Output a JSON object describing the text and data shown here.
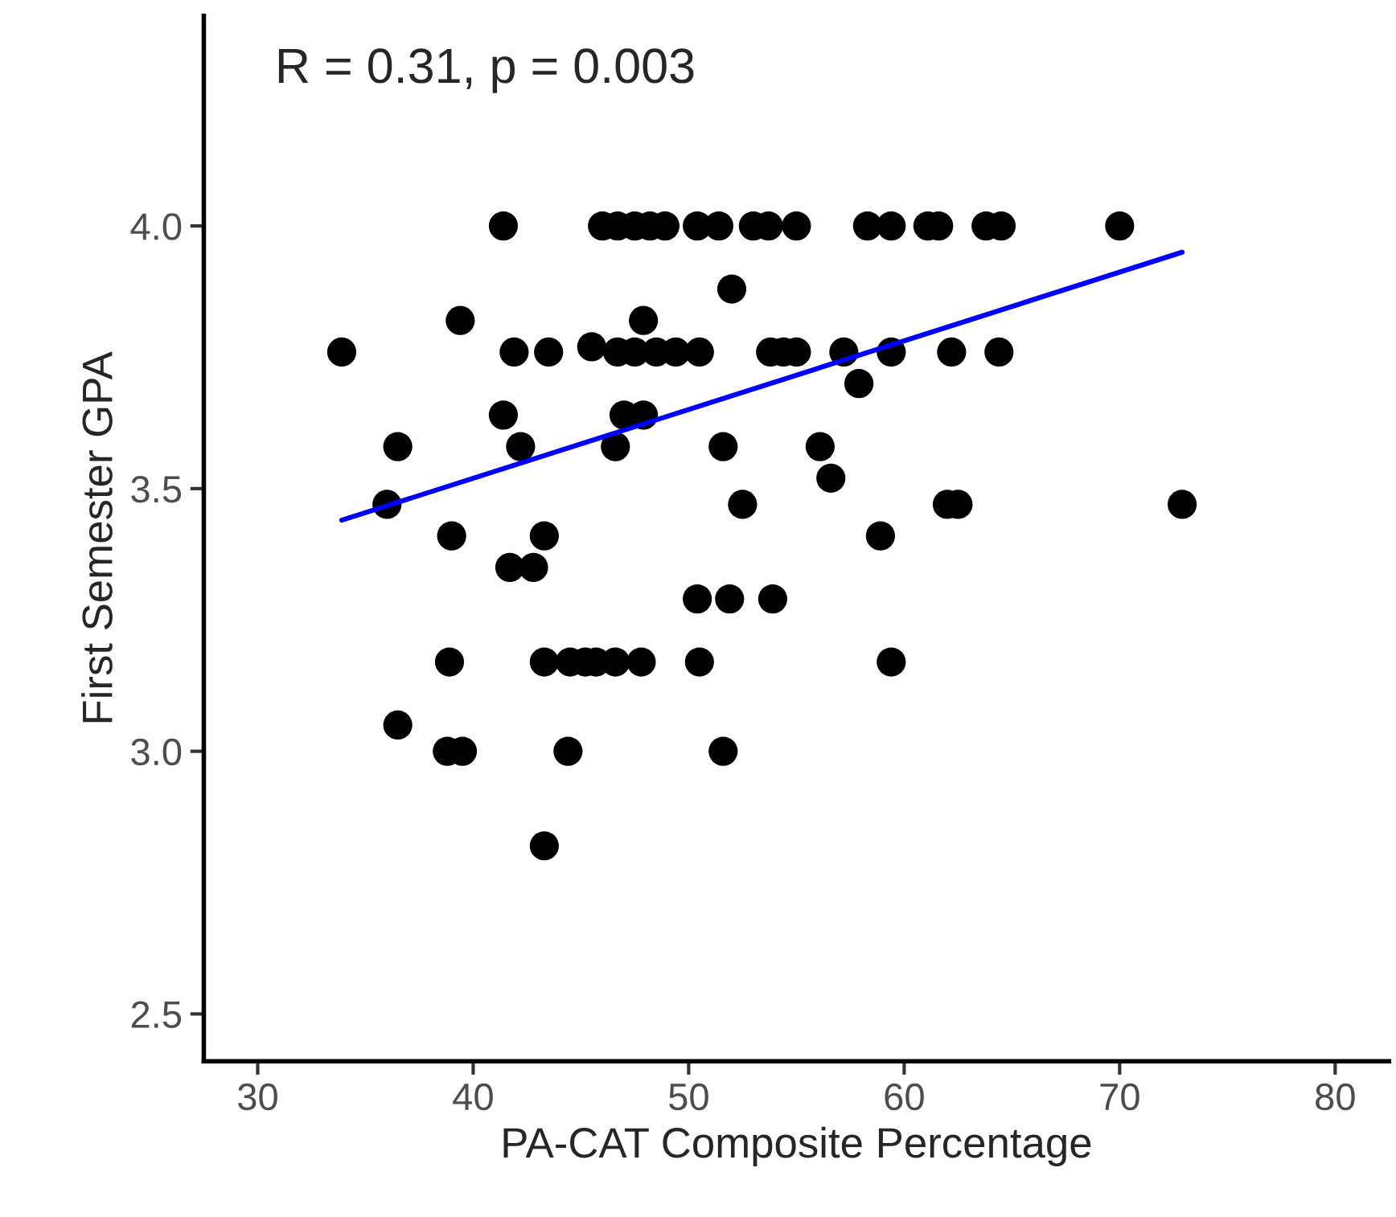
{
  "chart_data": {
    "type": "scatter",
    "xlabel": "PA-CAT Composite Percentage",
    "ylabel": "First Semester GPA",
    "annotations": [
      "R = 0.31, p = 0.003"
    ],
    "series": [
      {
        "color": "#000000",
        "marker": "circle",
        "x": [
          41.4,
          46.0,
          46.7,
          47.5,
          48.2,
          48.9,
          50.4,
          51.4,
          53.0,
          53.7,
          55.0,
          58.3,
          59.4,
          61.1,
          61.6,
          63.8,
          64.5,
          70.0,
          52.0,
          39.4,
          47.9,
          33.9,
          41.9,
          43.5,
          45.5,
          46.7,
          47.5,
          48.5,
          49.4,
          50.5,
          53.8,
          54.4,
          55.0,
          57.2,
          59.4,
          62.2,
          64.4,
          57.9,
          41.4,
          47.0,
          47.9,
          36.5,
          42.2,
          46.6,
          51.6,
          56.1,
          56.6,
          36.0,
          52.5,
          62.0,
          62.5,
          72.9,
          39.0,
          43.3,
          58.9,
          41.7,
          42.8,
          50.4,
          51.9,
          53.9,
          38.9,
          43.3,
          44.5,
          45.2,
          45.7,
          46.6,
          47.8,
          50.5,
          59.4,
          36.5,
          38.8,
          39.5,
          44.4,
          51.6,
          43.3
        ],
        "values": [
          4.0,
          4.0,
          4.0,
          4.0,
          4.0,
          4.0,
          4.0,
          4.0,
          4.0,
          4.0,
          4.0,
          4.0,
          4.0,
          4.0,
          4.0,
          4.0,
          4.0,
          4.0,
          3.88,
          3.82,
          3.82,
          3.76,
          3.76,
          3.76,
          3.77,
          3.76,
          3.76,
          3.76,
          3.76,
          3.76,
          3.76,
          3.76,
          3.76,
          3.76,
          3.76,
          3.76,
          3.76,
          3.7,
          3.64,
          3.64,
          3.64,
          3.58,
          3.58,
          3.58,
          3.58,
          3.58,
          3.52,
          3.47,
          3.47,
          3.47,
          3.47,
          3.47,
          3.41,
          3.41,
          3.41,
          3.35,
          3.35,
          3.29,
          3.29,
          3.29,
          3.17,
          3.17,
          3.17,
          3.17,
          3.17,
          3.17,
          3.17,
          3.17,
          3.17,
          3.05,
          3.0,
          3.0,
          3.0,
          3.0,
          2.82
        ]
      },
      {
        "type": "line",
        "color": "#0000ff",
        "line_style": "solid",
        "marker": "none",
        "x": [
          33.9,
          72.9
        ],
        "values": [
          3.44,
          3.95
        ]
      }
    ],
    "xlim": [
      27.5,
      82.5
    ],
    "ylim": [
      2.41,
      4.4
    ],
    "xticks": [
      30,
      40,
      50,
      60,
      70,
      80
    ],
    "yticks": [
      2.5,
      {
        "value": 3.0,
        "label": "3.0"
      },
      3.5,
      {
        "value": 4.0,
        "label": "4.0"
      }
    ],
    "grid": false,
    "legend": false
  }
}
